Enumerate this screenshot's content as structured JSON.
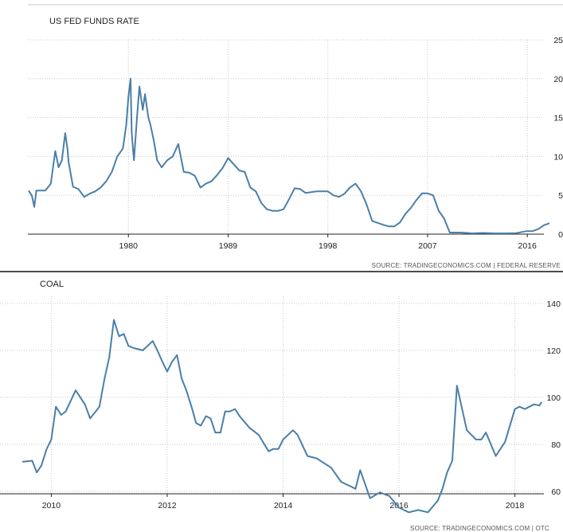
{
  "chart_data": [
    {
      "type": "line",
      "title": "US FED FUNDS RATE",
      "source": "SOURCE: TRADINGECONOMICS.COM | FEDERAL RESERVE",
      "x_tick_labels": [
        "1980",
        "1989",
        "1998",
        "2007",
        "2016"
      ],
      "y_tick_labels": [
        "0",
        "5",
        "10",
        "15",
        "20",
        "25"
      ],
      "xlim": [
        1971,
        2018
      ],
      "ylim": [
        0,
        25
      ],
      "grid": true,
      "color": "#4a7fa8",
      "series": [
        {
          "x": [
            1971.0,
            1971.3,
            1971.5,
            1971.7,
            1972.0,
            1972.5,
            1973.0,
            1973.4,
            1973.7,
            1974.0,
            1974.3,
            1974.5,
            1974.6,
            1975.0,
            1975.5,
            1976.0,
            1976.5,
            1977.0,
            1977.5,
            1978.0,
            1978.5,
            1979.0,
            1979.5,
            1979.8,
            1980.0,
            1980.2,
            1980.3,
            1980.5,
            1980.8,
            1981.0,
            1981.3,
            1981.5,
            1981.8,
            1982.0,
            1982.3,
            1982.6,
            1983.0,
            1983.5,
            1984.0,
            1984.5,
            1985.0,
            1985.5,
            1986.0,
            1986.5,
            1987.0,
            1987.5,
            1988.0,
            1988.5,
            1989.0,
            1989.5,
            1990.0,
            1990.5,
            1991.0,
            1991.5,
            1992.0,
            1992.5,
            1993.0,
            1993.5,
            1994.0,
            1994.5,
            1995.0,
            1995.5,
            1996.0,
            1997.0,
            1998.0,
            1998.5,
            1999.0,
            1999.5,
            2000.0,
            2000.5,
            2001.0,
            2001.5,
            2002.0,
            2003.0,
            2003.5,
            2004.0,
            2004.5,
            2005.0,
            2005.5,
            2006.0,
            2006.5,
            2007.0,
            2007.5,
            2008.0,
            2008.5,
            2009.0,
            2010.0,
            2011.0,
            2012.0,
            2013.0,
            2014.0,
            2015.0,
            2015.9,
            2016.5,
            2017.0,
            2017.5,
            2018.0
          ],
          "values": [
            5.6,
            4.9,
            3.5,
            5.6,
            5.6,
            5.6,
            6.5,
            10.7,
            8.6,
            9.5,
            13.0,
            11.0,
            9.3,
            6.1,
            5.8,
            4.8,
            5.2,
            5.5,
            6.0,
            6.8,
            8.0,
            10.0,
            11.0,
            14.0,
            17.6,
            20.0,
            13.0,
            9.5,
            15.5,
            19.0,
            16.0,
            18.0,
            15.0,
            14.0,
            12.0,
            9.5,
            8.6,
            9.5,
            10.0,
            11.6,
            8.0,
            7.9,
            7.5,
            6.0,
            6.5,
            6.8,
            7.6,
            8.5,
            9.8,
            9.0,
            8.2,
            8.0,
            6.0,
            5.5,
            4.0,
            3.2,
            3.0,
            3.0,
            3.2,
            4.5,
            5.9,
            5.8,
            5.3,
            5.5,
            5.5,
            5.0,
            4.8,
            5.2,
            6.0,
            6.5,
            5.5,
            3.8,
            1.7,
            1.2,
            1.0,
            1.0,
            1.5,
            2.6,
            3.4,
            4.4,
            5.25,
            5.25,
            5.0,
            3.0,
            2.0,
            0.2,
            0.2,
            0.1,
            0.15,
            0.1,
            0.1,
            0.13,
            0.38,
            0.4,
            0.66,
            1.15,
            1.4
          ]
        }
      ]
    },
    {
      "type": "line",
      "title": "COAL",
      "source": "SOURCE: TRADINGECONOMICS.COM | OTC",
      "x_tick_labels": [
        "2010",
        "2012",
        "2014",
        "2016",
        "2018"
      ],
      "y_tick_labels": [
        "60",
        "80",
        "100",
        "120",
        "140"
      ],
      "xlim": [
        2009.5,
        2018.5
      ],
      "ylim": [
        45,
        140
      ],
      "grid": true,
      "color": "#4a7fa8",
      "series": [
        {
          "x": [
            2009.5,
            2009.67,
            2009.75,
            2009.83,
            2009.92,
            2010.0,
            2010.08,
            2010.17,
            2010.25,
            2010.42,
            2010.58,
            2010.67,
            2010.83,
            2010.92,
            2011.0,
            2011.08,
            2011.17,
            2011.25,
            2011.33,
            2011.42,
            2011.58,
            2011.75,
            2011.83,
            2011.92,
            2012.0,
            2012.08,
            2012.17,
            2012.25,
            2012.33,
            2012.42,
            2012.5,
            2012.58,
            2012.67,
            2012.75,
            2012.83,
            2012.92,
            2013.0,
            2013.08,
            2013.17,
            2013.25,
            2013.42,
            2013.58,
            2013.75,
            2013.83,
            2013.92,
            2014.0,
            2014.17,
            2014.25,
            2014.42,
            2014.58,
            2014.83,
            2015.0,
            2015.08,
            2015.17,
            2015.25,
            2015.33,
            2015.5,
            2015.67,
            2015.83,
            2016.0,
            2016.17,
            2016.33,
            2016.5,
            2016.67,
            2016.75,
            2016.83,
            2016.92,
            2017.0,
            2017.17,
            2017.33,
            2017.42,
            2017.5,
            2017.67,
            2017.83,
            2018.0,
            2018.08,
            2018.17,
            2018.25,
            2018.33,
            2018.42,
            2018.46
          ],
          "values": [
            72.5,
            73.0,
            68.0,
            71.0,
            78.0,
            82.0,
            96.0,
            92.5,
            94.0,
            103.0,
            97.0,
            91.0,
            96.0,
            108.0,
            117.0,
            133.0,
            126.0,
            127.0,
            122.0,
            121.0,
            120.0,
            124.0,
            120.0,
            115.0,
            111.0,
            115.0,
            118.0,
            108.0,
            103.0,
            96.0,
            89.0,
            88.0,
            92.0,
            91.0,
            85.0,
            85.0,
            94.0,
            94.0,
            95.0,
            92.0,
            87.0,
            84.0,
            77.0,
            78.0,
            78.0,
            82.0,
            86.0,
            84.0,
            75.0,
            74.0,
            70.0,
            64.0,
            63.0,
            62.0,
            61.0,
            69.0,
            57.0,
            59.5,
            58.0,
            53.0,
            51.0,
            52.0,
            51.0,
            56.0,
            61.0,
            68.0,
            73.0,
            105.0,
            86.0,
            82.0,
            82.0,
            85.0,
            75.0,
            81.0,
            95.0,
            96.0,
            95.0,
            96.0,
            97.0,
            96.5,
            98.0
          ]
        }
      ]
    }
  ]
}
